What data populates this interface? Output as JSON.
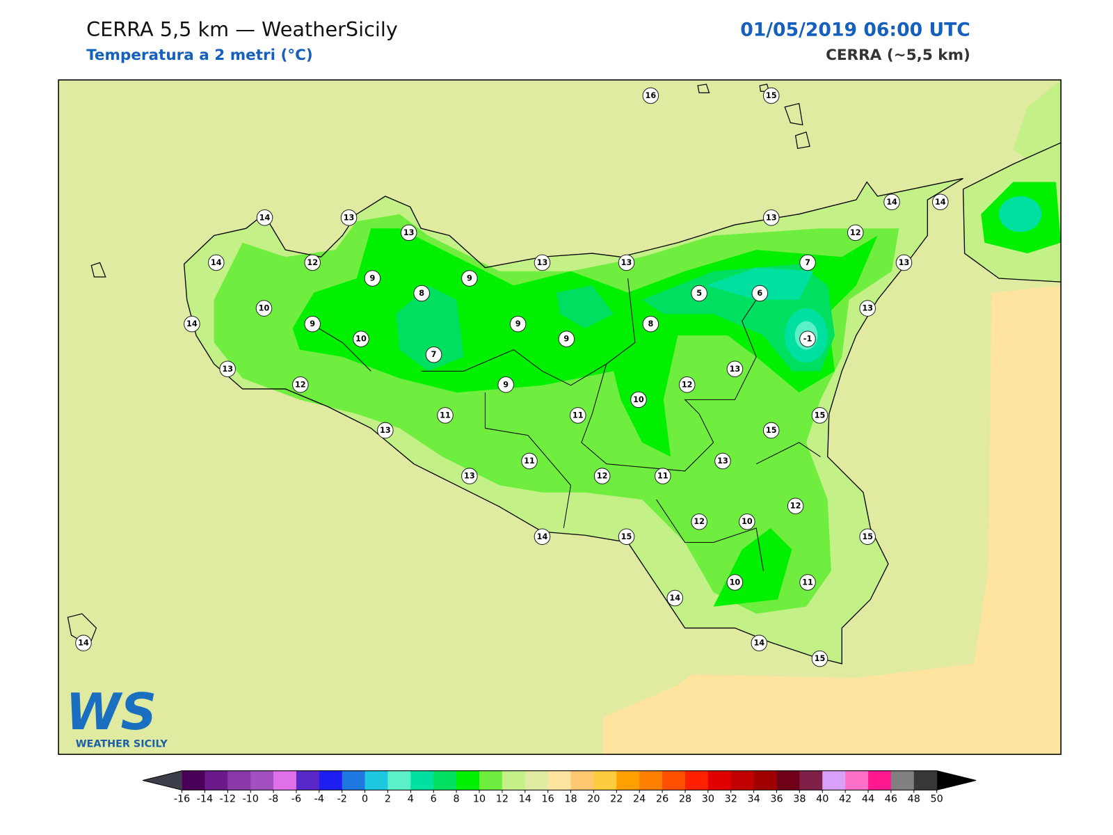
{
  "header": {
    "title": "CERRA 5,5 km — WeatherSicily",
    "subtitle": "Temperatura a 2 metri (°C)",
    "datetime": "01/05/2019 06:00 UTC",
    "model": "CERRA (~5,5 km)"
  },
  "logo": {
    "mark": "WS",
    "text": "WEATHER SICILY"
  },
  "station_values": [
    16,
    15,
    14,
    13,
    13,
    13,
    14,
    14,
    12,
    14,
    12,
    13,
    13,
    7,
    13,
    9,
    9,
    8,
    5,
    6,
    13,
    10,
    14,
    9,
    9,
    8,
    10,
    9,
    -1,
    7,
    13,
    13,
    12,
    9,
    12,
    10,
    11,
    11,
    15,
    13,
    15,
    11,
    13,
    13,
    12,
    11,
    12,
    12,
    10,
    14,
    15,
    15,
    10,
    11,
    14,
    14,
    14,
    15
  ],
  "colorbar": {
    "ticks": [
      -16,
      -14,
      -12,
      -10,
      -8,
      -6,
      -4,
      -2,
      0,
      2,
      4,
      6,
      8,
      10,
      12,
      14,
      16,
      18,
      20,
      22,
      24,
      26,
      28,
      30,
      32,
      34,
      36,
      38,
      40,
      42,
      44,
      46,
      48,
      50
    ],
    "colors": [
      "#4b0057",
      "#6a1a8a",
      "#8a3aa8",
      "#a050c0",
      "#e070e8",
      "#5a28c8",
      "#1e1ef0",
      "#1e78e0",
      "#1ec8e0",
      "#5cf0c8",
      "#00e0a0",
      "#00e060",
      "#00f000",
      "#70ee40",
      "#c4f088",
      "#e0eaa0",
      "#ffe4a0",
      "#ffc870",
      "#ffcc40",
      "#ffa000",
      "#ff8000",
      "#ff5000",
      "#ff2000",
      "#e00000",
      "#c00000",
      "#a00000",
      "#700018",
      "#802048",
      "#d8a0f8",
      "#ff70c8",
      "#ff1890",
      "#808080",
      "#383838"
    ],
    "under_color": "#3c3f4a",
    "over_color": "#000000"
  }
}
